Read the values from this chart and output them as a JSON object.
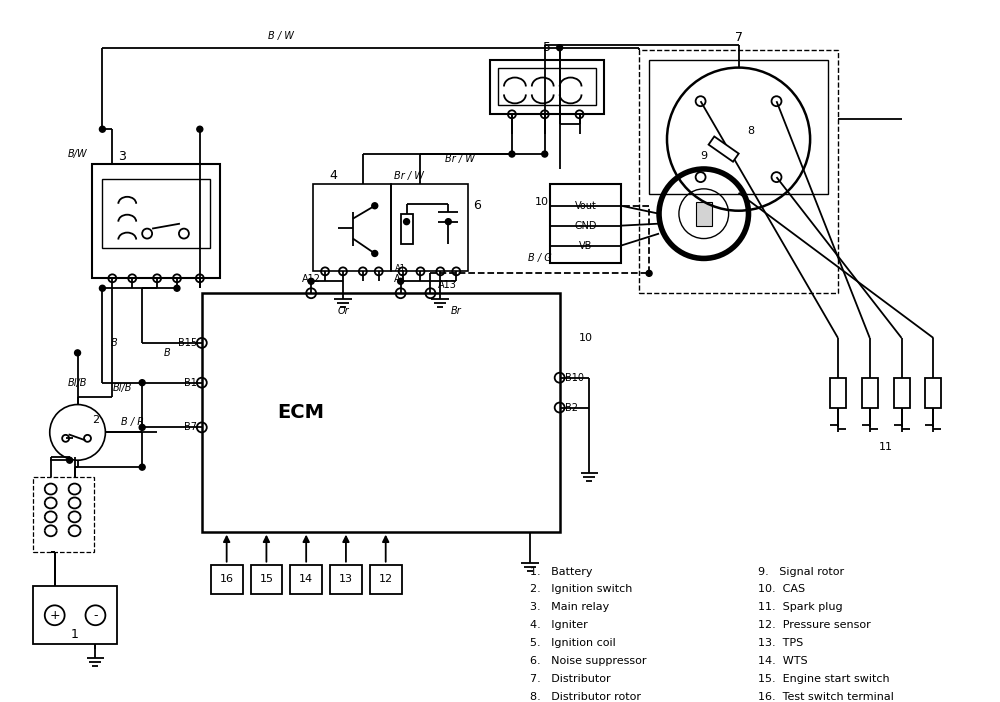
{
  "bg_color": "#ffffff",
  "legend_col1": [
    "1.   Battery",
    "2.   Ignition switch",
    "3.   Main relay",
    "4.   Igniter",
    "5.   Ignition coil",
    "6.   Noise suppressor",
    "7.   Distributor",
    "8.   Distributor rotor"
  ],
  "legend_col2": [
    "9.   Signal rotor",
    "10.  CAS",
    "11.  Spark plug",
    "12.  Pressure sensor",
    "13.  TPS",
    "14.  WTS",
    "15.  Engine start switch",
    "16.  Test switch terminal"
  ]
}
